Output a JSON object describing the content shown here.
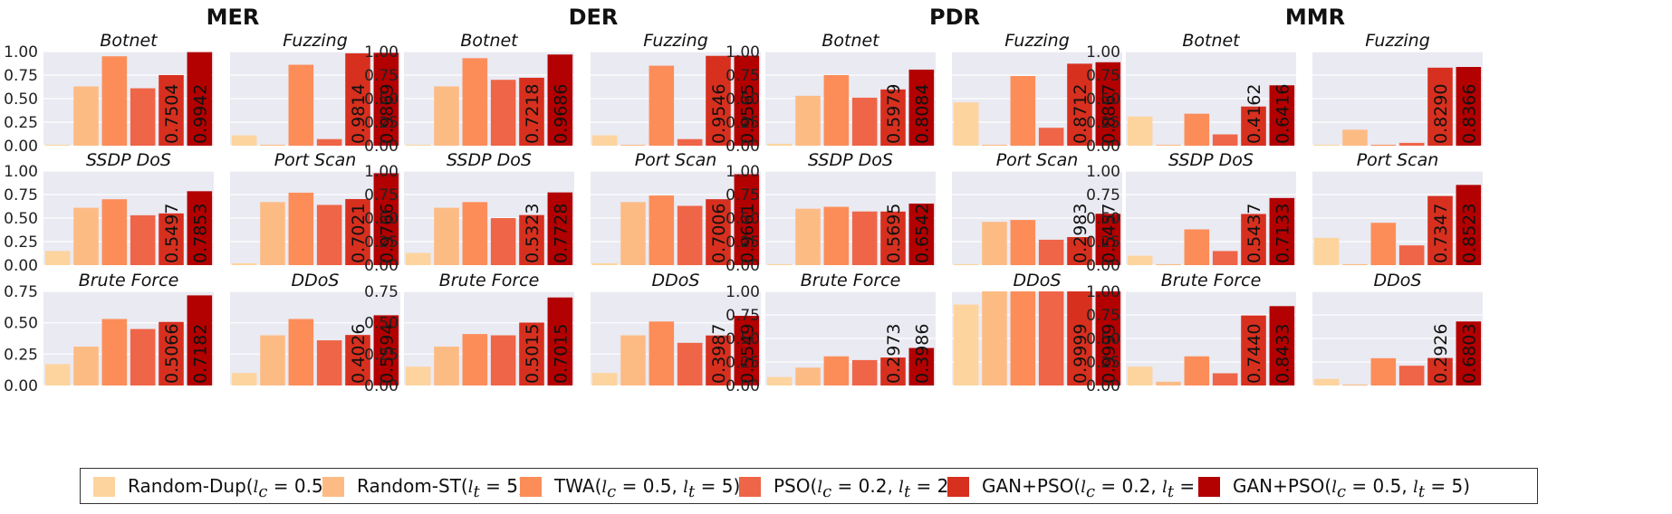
{
  "chart_data": {
    "type": "bar",
    "metrics": [
      "MER",
      "DER",
      "PDR",
      "MMR"
    ],
    "attacks": [
      "Botnet",
      "Fuzzing",
      "SSDP DoS",
      "Port Scan",
      "Brute Force",
      "DDoS"
    ],
    "methods": [
      {
        "name": "Random-Dup(l_c = 0.5)",
        "label_base": "Random-Dup(",
        "label_rest": " = 0.5)",
        "color": "#fdd49e"
      },
      {
        "name": "Random-ST(l_t = 5)",
        "label_base": "Random-ST(",
        "label_rest": " = 5)",
        "color": "#fdbb84"
      },
      {
        "name": "TWA(l_c = 0.5, l_t = 5)",
        "label_base": "TWA(",
        "label_rest": " = 0.5, ",
        "label_rest2": " = 5)",
        "color": "#fc8d59"
      },
      {
        "name": "PSO(l_c = 0.2, l_t = 2)",
        "label_base": "PSO(",
        "label_rest": " = 0.2, ",
        "label_rest2": " = 2)",
        "color": "#ef6548"
      },
      {
        "name": "GAN+PSO(l_c = 0.2, l_t = 2)",
        "label_base": "GAN+PSO(",
        "label_rest": " = 0.2, ",
        "label_rest2": " = 2)",
        "color": "#d7301f"
      },
      {
        "name": "GAN+PSO(l_c = 0.5, l_t = 5)",
        "label_base": "GAN+PSO(",
        "label_rest": " = 0.5, ",
        "label_rest2": " = 5)",
        "color": "#b30000"
      }
    ],
    "y_ticks": [
      "0.00",
      "0.25",
      "0.50",
      "0.75",
      "1.00"
    ],
    "ylim_default": [
      0,
      1.0
    ],
    "ylim_brute_ddos_mer_der": [
      0,
      0.75
    ],
    "grid": true,
    "legend_position": "bottom",
    "values": {
      "MER": {
        "Botnet": [
          0.01,
          0.63,
          0.95,
          0.61,
          0.7504,
          0.9942
        ],
        "Fuzzing": [
          0.11,
          0.01,
          0.86,
          0.07,
          0.9814,
          0.9869
        ],
        "SSDP DoS": [
          0.15,
          0.61,
          0.7,
          0.53,
          0.5497,
          0.7853
        ],
        "Port Scan": [
          0.02,
          0.67,
          0.77,
          0.64,
          0.7021,
          0.9766
        ],
        "Brute Force": [
          0.17,
          0.31,
          0.53,
          0.45,
          0.5066,
          0.7182
        ],
        "DDoS": [
          0.1,
          0.4,
          0.53,
          0.36,
          0.4026,
          0.5594
        ]
      },
      "DER": {
        "Botnet": [
          0.01,
          0.63,
          0.93,
          0.7,
          0.7218,
          0.9686
        ],
        "Fuzzing": [
          0.11,
          0.01,
          0.85,
          0.07,
          0.9546,
          0.9565
        ],
        "SSDP DoS": [
          0.13,
          0.61,
          0.67,
          0.5,
          0.5323,
          0.7728
        ],
        "Port Scan": [
          0.02,
          0.67,
          0.74,
          0.63,
          0.7006,
          0.9661
        ],
        "Brute Force": [
          0.15,
          0.31,
          0.41,
          0.4,
          0.5015,
          0.7015
        ],
        "DDoS": [
          0.1,
          0.4,
          0.51,
          0.34,
          0.3987,
          0.5549
        ]
      },
      "PDR": {
        "Botnet": [
          0.02,
          0.53,
          0.75,
          0.51,
          0.5979,
          0.8084
        ],
        "Fuzzing": [
          0.46,
          0.01,
          0.74,
          0.19,
          0.8712,
          0.8867
        ],
        "SSDP DoS": [
          0.01,
          0.6,
          0.62,
          0.57,
          0.5695,
          0.6542
        ],
        "Port Scan": [
          0.01,
          0.46,
          0.48,
          0.27,
          0.2983,
          0.5457
        ],
        "Brute Force": [
          0.09,
          0.19,
          0.31,
          0.27,
          0.2973,
          0.3986
        ],
        "DDoS": [
          0.86,
          1.0,
          1.0,
          1.0,
          0.9999,
          0.9999
        ]
      },
      "MMR": {
        "Botnet": [
          0.31,
          0.01,
          0.34,
          0.12,
          0.4162,
          0.6416
        ],
        "Fuzzing": [
          0.01,
          0.17,
          0.01,
          0.03,
          0.829,
          0.8366
        ],
        "SSDP DoS": [
          0.1,
          0.01,
          0.38,
          0.15,
          0.5437,
          0.7133
        ],
        "Port Scan": [
          0.29,
          0.01,
          0.45,
          0.21,
          0.7347,
          0.8523
        ],
        "Brute Force": [
          0.2,
          0.04,
          0.31,
          0.13,
          0.744,
          0.8433
        ],
        "DDoS": [
          0.07,
          0.01,
          0.29,
          0.21,
          0.2926,
          0.6803
        ]
      }
    },
    "labels": {
      "MER": {
        "Botnet": [
          "0.7504",
          "0.9942"
        ],
        "Fuzzing": [
          "0.9814",
          "0.9869"
        ],
        "SSDP DoS": [
          "0.5497",
          "0.7853"
        ],
        "Port Scan": [
          "0.7021",
          "0.9766"
        ],
        "Brute Force": [
          "0.5066",
          "0.7182"
        ],
        "DDoS": [
          "0.4026",
          "0.5594"
        ]
      },
      "DER": {
        "Botnet": [
          "0.7218",
          "0.9686"
        ],
        "Fuzzing": [
          "0.9546",
          "0.9565"
        ],
        "SSDP DoS": [
          "0.5323",
          "0.7728"
        ],
        "Port Scan": [
          "0.7006",
          "0.9661"
        ],
        "Brute Force": [
          "0.5015",
          "0.7015"
        ],
        "DDoS": [
          "0.3987",
          "0.5549"
        ]
      },
      "PDR": {
        "Botnet": [
          "0.5979",
          "0.8084"
        ],
        "Fuzzing": [
          "0.8712",
          "0.8867"
        ],
        "SSDP DoS": [
          "0.5695",
          "0.6542"
        ],
        "Port Scan": [
          "0.2983",
          "0.5457"
        ],
        "Brute Force": [
          "0.2973",
          "0.3986"
        ],
        "DDoS": [
          "0.9999",
          "0.9999"
        ]
      },
      "MMR": {
        "Botnet": [
          "0.4162",
          "0.6416"
        ],
        "Fuzzing": [
          "0.8290",
          "0.8366"
        ],
        "SSDP DoS": [
          "0.5437",
          "0.7133"
        ],
        "Port Scan": [
          "0.7347",
          "0.8523"
        ],
        "Brute Force": [
          "0.7440",
          "0.8433"
        ],
        "DDoS": [
          "0.2926",
          "0.6803"
        ]
      }
    }
  },
  "legend": {
    "symbol_c": "l",
    "symbol_c_sub": "c",
    "symbol_t": "l",
    "symbol_t_sub": "t"
  }
}
